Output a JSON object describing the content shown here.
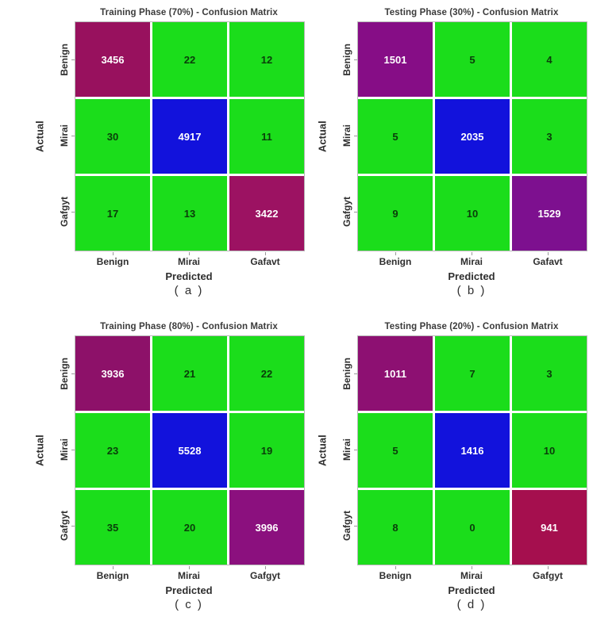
{
  "colors": {
    "off_diagonal": "#1bdd1b",
    "gridline": "#ffffff",
    "matrix_border": "#b8b8b8",
    "value_on_diag": "#ffffff",
    "value_on_green": "#0a3d0a",
    "title_text": "#3b3b3b",
    "tick_text": "#2e2e2e"
  },
  "chart_data": [
    {
      "type": "heatmap",
      "title": "Training Phase (70%) - Confusion Matrix",
      "caption": "( a )",
      "xlabel": "Predicted",
      "ylabel": "Actual",
      "x_labels": [
        "Benign",
        "Mirai",
        "Gafavt"
      ],
      "y_labels": [
        "Benign",
        "Mirai",
        "Gafgyt"
      ],
      "values": [
        [
          3456,
          22,
          12
        ],
        [
          30,
          4917,
          11
        ],
        [
          17,
          13,
          3422
        ]
      ],
      "diag_colors": [
        "#98115e",
        "#1212dc",
        "#9c1262"
      ]
    },
    {
      "type": "heatmap",
      "title": "Testing Phase (30%) - Confusion Matrix",
      "caption": "( b )",
      "xlabel": "Predicted",
      "ylabel": "Actual",
      "x_labels": [
        "Benign",
        "Mirai",
        "Gafavt"
      ],
      "y_labels": [
        "Benign",
        "Mirai",
        "Gafgyt"
      ],
      "values": [
        [
          1501,
          5,
          4
        ],
        [
          5,
          2035,
          3
        ],
        [
          9,
          10,
          1529
        ]
      ],
      "diag_colors": [
        "#860d86",
        "#1212dc",
        "#7d108f"
      ]
    },
    {
      "type": "heatmap",
      "title": "Training Phase (80%) - Confusion Matrix",
      "caption": "( c )",
      "xlabel": "Predicted",
      "ylabel": "Actual",
      "x_labels": [
        "Benign",
        "Mirai",
        "Gafgyt"
      ],
      "y_labels": [
        "Benign",
        "Mirai",
        "Gafgyt"
      ],
      "values": [
        [
          3936,
          21,
          22
        ],
        [
          23,
          5528,
          19
        ],
        [
          35,
          20,
          3996
        ]
      ],
      "diag_colors": [
        "#8d1169",
        "#1212dc",
        "#8b107e"
      ]
    },
    {
      "type": "heatmap",
      "title": "Testing Phase (20%) - Confusion Matrix",
      "caption": "( d )",
      "xlabel": "Predicted",
      "ylabel": "Actual",
      "x_labels": [
        "Benign",
        "Mirai",
        "Gafgyt"
      ],
      "y_labels": [
        "Benign",
        "Mirai",
        "Gafgyt"
      ],
      "values": [
        [
          1011,
          7,
          3
        ],
        [
          5,
          1416,
          10
        ],
        [
          8,
          0,
          941
        ]
      ],
      "diag_colors": [
        "#8d1072",
        "#1212dc",
        "#a50f4e"
      ]
    }
  ]
}
